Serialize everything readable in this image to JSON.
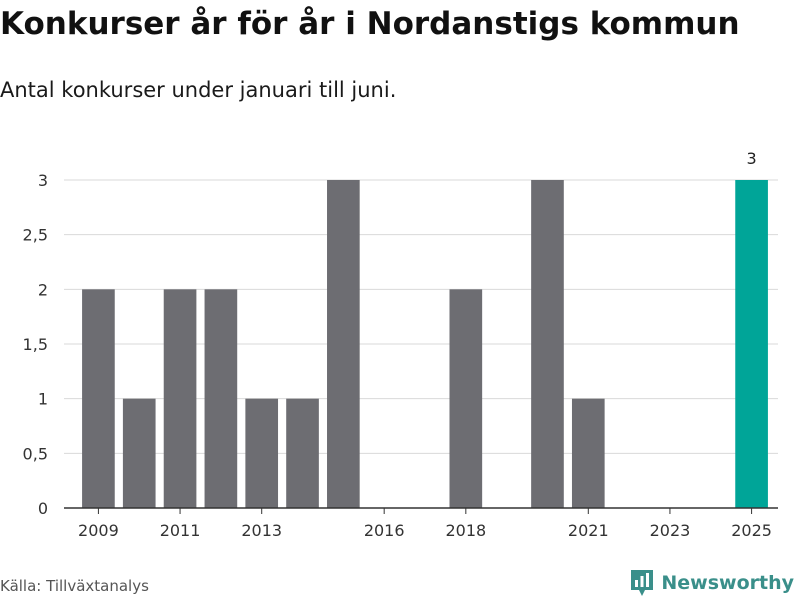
{
  "chart_data": {
    "type": "bar",
    "title": "Konkurser år för år i Nordanstigs kommun",
    "subtitle": "Antal konkurser under januari till juni.",
    "categories": [
      "2009",
      "2010",
      "2011",
      "2012",
      "2013",
      "2014",
      "2015",
      "2016",
      "2017",
      "2018",
      "2019",
      "2020",
      "2021",
      "2022",
      "2023",
      "2024",
      "2025"
    ],
    "values": [
      2,
      1,
      2,
      2,
      1,
      1,
      3,
      0,
      0,
      2,
      0,
      3,
      1,
      0,
      0,
      0,
      3
    ],
    "x_tick_labels": [
      "2009",
      "2011",
      "2013",
      "2016",
      "2018",
      "2021",
      "2023",
      "2025"
    ],
    "y_ticks": [
      0,
      0.5,
      1,
      1.5,
      2,
      2.5,
      3
    ],
    "y_tick_labels": [
      "0",
      "0,5",
      "1",
      "1,5",
      "2",
      "2,5",
      "3"
    ],
    "ylim": [
      0,
      3
    ],
    "grid": true,
    "highlight": {
      "category": "2025",
      "value_label": "3"
    },
    "colors": {
      "bar": "#6d6d72",
      "highlight": "#00a598",
      "grid": "#d9d9d9",
      "axis": "#333333"
    }
  },
  "footer": {
    "source": "Källa: Tillväxtanalys",
    "brand": "Newsworthy",
    "brand_icon": "bar-chart-icon"
  }
}
